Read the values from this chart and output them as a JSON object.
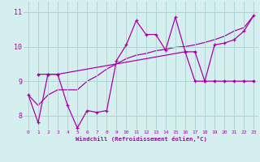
{
  "xlabel": "Windchill (Refroidissement éolien,°C)",
  "bg_color": "#d5efef",
  "grid_color": "#aed4d4",
  "line_color": "#aa00aa",
  "xlim": [
    -0.5,
    23.5
  ],
  "ylim": [
    7.6,
    11.3
  ],
  "yticks": [
    8,
    9,
    10,
    11
  ],
  "xticks": [
    0,
    1,
    2,
    3,
    4,
    5,
    6,
    7,
    8,
    9,
    10,
    11,
    12,
    13,
    14,
    15,
    16,
    17,
    18,
    19,
    20,
    21,
    22,
    23
  ],
  "line1_x": [
    0,
    1,
    2,
    3,
    4,
    5,
    6,
    7,
    8,
    9,
    10,
    11,
    12,
    13,
    14,
    15,
    16,
    17,
    18,
    19,
    20,
    21,
    22,
    23
  ],
  "line1_y": [
    8.6,
    7.8,
    9.2,
    9.2,
    8.3,
    7.65,
    8.15,
    8.1,
    8.15,
    9.6,
    10.05,
    10.75,
    10.35,
    10.35,
    9.9,
    10.85,
    9.85,
    9.0,
    9.0,
    10.05,
    10.1,
    10.2,
    10.45,
    10.9
  ],
  "line2_x": [
    1,
    2,
    3,
    16,
    17,
    18,
    19,
    20,
    21,
    22,
    23
  ],
  "line2_y": [
    9.2,
    9.2,
    9.2,
    9.85,
    9.85,
    9.0,
    9.0,
    9.0,
    9.0,
    9.0,
    9.0
  ],
  "line3_x": [
    0,
    1,
    2,
    3,
    4,
    5,
    6,
    7,
    8,
    9,
    10,
    11,
    12,
    13,
    14,
    15,
    16,
    17,
    18,
    19,
    20,
    21,
    22,
    23
  ],
  "line3_y": [
    8.6,
    8.3,
    8.6,
    8.75,
    8.75,
    8.75,
    9.0,
    9.15,
    9.35,
    9.5,
    9.65,
    9.75,
    9.8,
    9.88,
    9.92,
    9.98,
    10.0,
    10.05,
    10.12,
    10.2,
    10.3,
    10.45,
    10.55,
    10.9
  ]
}
